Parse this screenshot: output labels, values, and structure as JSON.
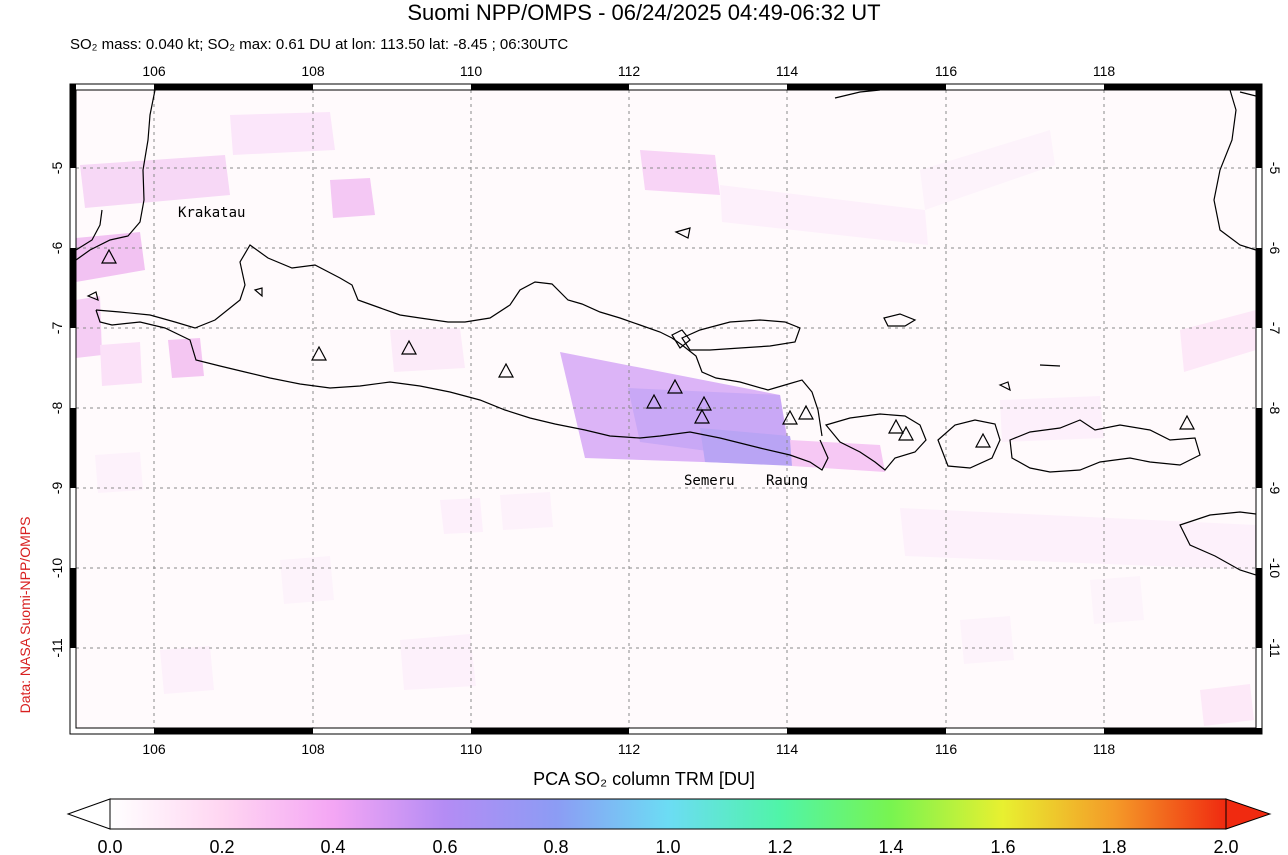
{
  "header": {
    "title": "Suomi NPP/OMPS - 06/24/2025 04:49-06:32 UT",
    "subtitle": "SO₂ mass: 0.040 kt; SO₂ max: 0.61 DU at lon: 113.50 lat: -8.45 ; 06:30UTC"
  },
  "credit": "Data: NASA Suomi-NPP/OMPS",
  "map": {
    "lon_ticks": [
      "106",
      "108",
      "110",
      "112",
      "114",
      "116",
      "118"
    ],
    "lat_ticks": [
      "-5",
      "-6",
      "-7",
      "-8",
      "-9",
      "-10",
      "-11"
    ],
    "volcano_labels": {
      "krakatau": "Krakatau",
      "semeru": "Semeru",
      "raung": "Raung"
    }
  },
  "colorbar": {
    "label": "PCA SO₂ column TRM [DU]",
    "ticks": [
      "0.0",
      "0.2",
      "0.4",
      "0.6",
      "0.8",
      "1.0",
      "1.2",
      "1.4",
      "1.6",
      "1.8",
      "2.0"
    ],
    "colors": [
      "#ffffff",
      "#ffd6f2",
      "#f4a6f4",
      "#b48cf4",
      "#8c9cf4",
      "#6cdcf4",
      "#50f4a8",
      "#78f450",
      "#e8f030",
      "#f49a28",
      "#f02a10"
    ]
  }
}
